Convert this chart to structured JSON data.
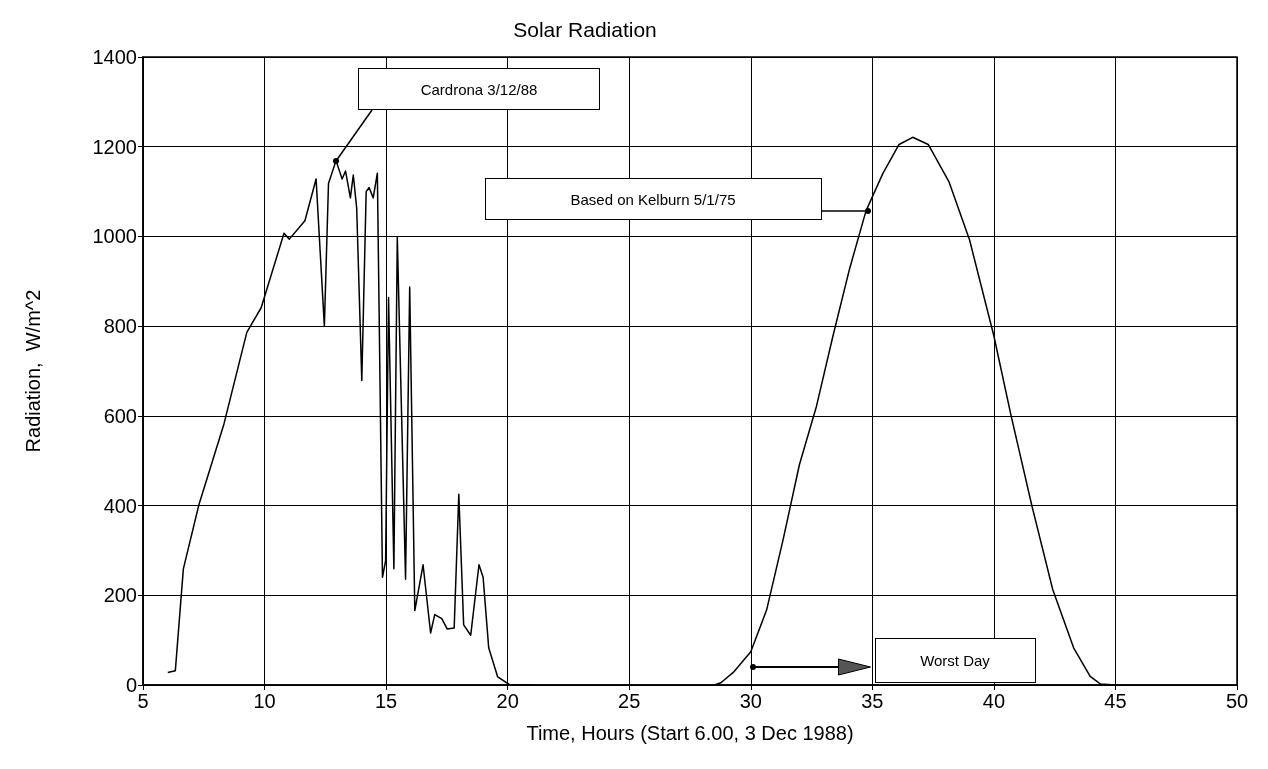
{
  "chart_data": {
    "type": "line",
    "title": "Solar Radiation",
    "xlabel": "Time, Hours (Start 6.00, 3 Dec 1988)",
    "ylabel": "Radiation,  W/m^2",
    "xlim": [
      5,
      50
    ],
    "xticks": [
      5,
      10,
      15,
      20,
      25,
      30,
      35,
      40,
      45,
      50
    ],
    "ylim": [
      0,
      1400
    ],
    "yticks": [
      0,
      200,
      400,
      600,
      800,
      1000,
      1200,
      1400
    ],
    "grid": true,
    "marker": "none",
    "line_style": "solid",
    "series": [
      {
        "color": "#000000",
        "x": [
          6.02,
          6.33,
          6.66,
          7.3,
          8.33,
          9.27,
          9.86,
          10.8,
          11.02,
          11.66,
          12.12,
          12.46,
          12.63,
          12.94,
          13.19,
          13.33,
          13.53,
          13.65,
          13.79,
          14.0,
          14.18,
          14.3,
          14.47,
          14.64,
          14.85,
          14.98,
          15.1,
          15.32,
          15.46,
          15.8,
          15.97,
          16.18,
          16.52,
          16.83,
          17.0,
          17.29,
          17.51,
          17.8,
          17.99,
          18.19,
          18.48,
          18.82,
          18.99,
          19.22,
          19.59,
          20.1,
          21
        ],
        "values": [
          28,
          32,
          259,
          402,
          582,
          786,
          841,
          1007,
          994,
          1035,
          1128,
          800,
          1118,
          1169,
          1128,
          1146,
          1086,
          1137,
          1063,
          679,
          1100,
          1109,
          1086,
          1141,
          240,
          277,
          864,
          259,
          998,
          236,
          887,
          166,
          268,
          116,
          157,
          148,
          125,
          127,
          425,
          134,
          111,
          268,
          240,
          83,
          18,
          0,
          0
        ]
      },
      {
        "color": "#000000",
        "x": [
          28.5,
          28.77,
          29.28,
          30,
          30.65,
          31.33,
          32.0,
          32.7,
          33.38,
          34.06,
          34.74,
          35.43,
          36.1,
          36.66,
          37.3,
          38.16,
          39.0,
          40.0,
          40.7,
          41.57,
          42.42,
          43.28,
          43.96,
          44.39,
          45
        ],
        "values": [
          0,
          5,
          28,
          74,
          167,
          324,
          491,
          621,
          778,
          927,
          1057,
          1140,
          1205,
          1221,
          1205,
          1121,
          992,
          778,
          602,
          398,
          213,
          83,
          19,
          2,
          0
        ]
      }
    ],
    "annotations": [
      "Cardrona 3/12/88",
      "Based on Kelburn  5/1/75",
      "Worst Day"
    ]
  }
}
